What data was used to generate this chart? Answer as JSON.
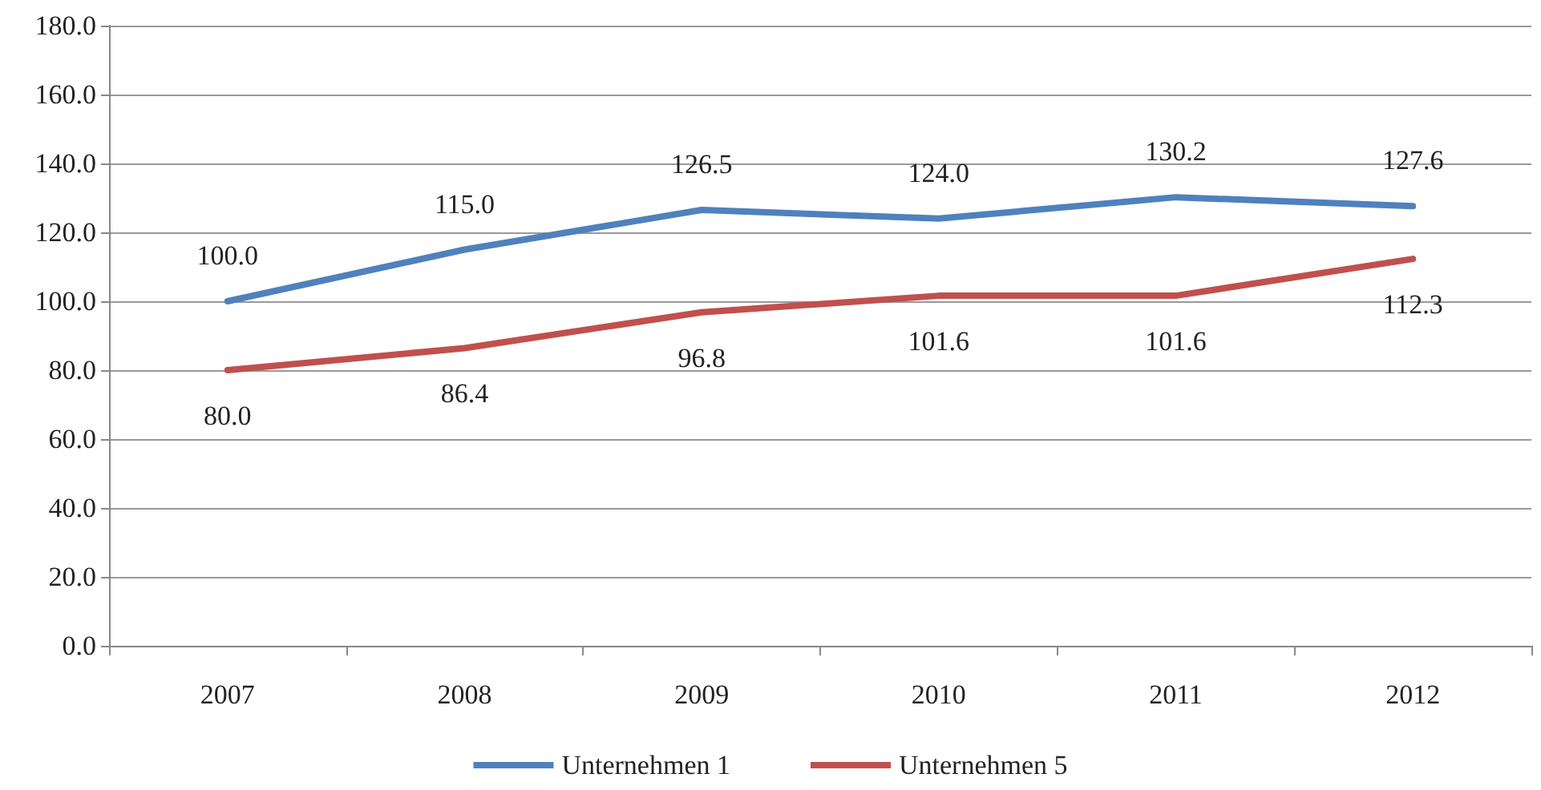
{
  "chart_data": {
    "type": "line",
    "categories": [
      "2007",
      "2008",
      "2009",
      "2010",
      "2011",
      "2012"
    ],
    "series": [
      {
        "name": "Unternehmen 1",
        "color": "#4f81bd",
        "values": [
          100.0,
          115.0,
          126.5,
          124.0,
          130.2,
          127.6
        ],
        "value_labels": [
          "100.0",
          "115.0",
          "126.5",
          "124.0",
          "130.2",
          "127.6"
        ]
      },
      {
        "name": "Unternehmen 5",
        "color": "#c0504d",
        "values": [
          80.0,
          86.4,
          96.8,
          101.6,
          101.6,
          112.3
        ],
        "value_labels": [
          "80.0",
          "86.4",
          "96.8",
          "101.6",
          "101.6",
          "112.3"
        ]
      }
    ],
    "ylim": [
      0,
      180
    ],
    "yticks": [
      {
        "value": 0,
        "label": "0.0"
      },
      {
        "value": 20,
        "label": "20.0"
      },
      {
        "value": 40,
        "label": "40.0"
      },
      {
        "value": 60,
        "label": "60.0"
      },
      {
        "value": 80,
        "label": "80.0"
      },
      {
        "value": 100,
        "label": "100.0"
      },
      {
        "value": 120,
        "label": "120.0"
      },
      {
        "value": 140,
        "label": "140.0"
      },
      {
        "value": 160,
        "label": "160.0"
      },
      {
        "value": 180,
        "label": "180.0"
      }
    ],
    "grid": "y",
    "legend": "bottom",
    "marker": "none",
    "line_style": "solid"
  }
}
